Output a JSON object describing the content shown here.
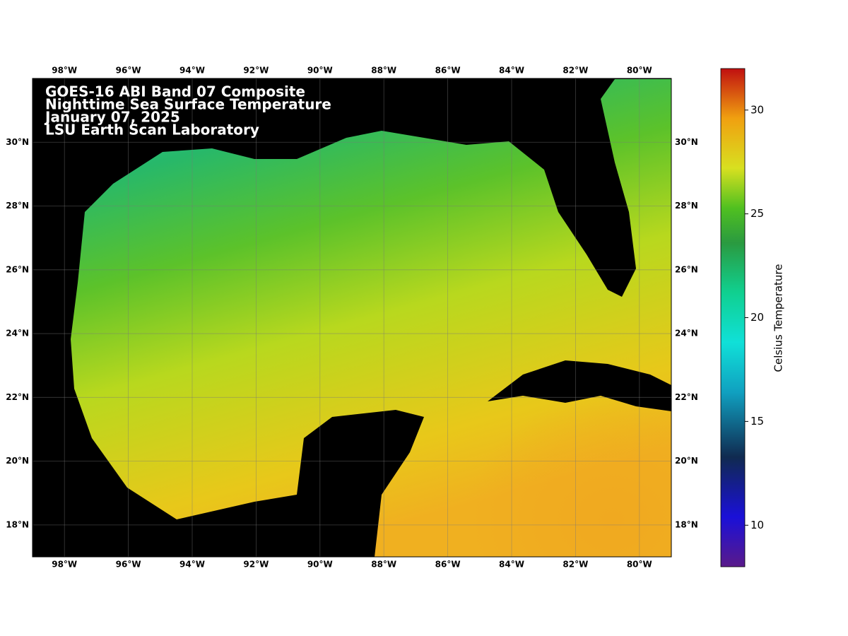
{
  "map": {
    "title_lines": [
      "GOES-16 ABI Band 07 Composite",
      "Nighttime Sea Surface Temperature",
      "January 07, 2025",
      "LSU Earth Scan Laboratory"
    ],
    "lonlim": [
      -99,
      -79
    ],
    "latlim": [
      17,
      32
    ],
    "grid": true,
    "lon_ticks": [
      {
        "value": -98,
        "label": "98°W"
      },
      {
        "value": -96,
        "label": "96°W"
      },
      {
        "value": -94,
        "label": "94°W"
      },
      {
        "value": -92,
        "label": "92°W"
      },
      {
        "value": -90,
        "label": "90°W"
      },
      {
        "value": -88,
        "label": "88°W"
      },
      {
        "value": -86,
        "label": "86°W"
      },
      {
        "value": -84,
        "label": "84°W"
      },
      {
        "value": -82,
        "label": "82°W"
      },
      {
        "value": -80,
        "label": "80°W"
      }
    ],
    "lat_ticks": [
      {
        "value": 18,
        "label": "18°N"
      },
      {
        "value": 20,
        "label": "20°N"
      },
      {
        "value": 22,
        "label": "22°N"
      },
      {
        "value": 24,
        "label": "24°N"
      },
      {
        "value": 26,
        "label": "26°N"
      },
      {
        "value": 28,
        "label": "28°N"
      },
      {
        "value": 30,
        "label": "30°N"
      }
    ]
  },
  "colorbar": {
    "label": "Celsius Temperature",
    "lim": [
      8,
      32
    ],
    "ticks": [
      10,
      15,
      20,
      25,
      30
    ]
  }
}
